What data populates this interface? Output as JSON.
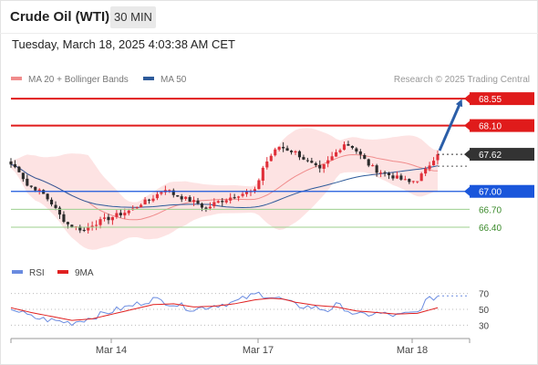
{
  "header": {
    "title": "Crude Oil (WTI)",
    "timeframe": "30 MIN",
    "datetime": "Tuesday, March 18, 2025 4:03:38 AM CET"
  },
  "legend": {
    "main": [
      {
        "label": "MA 20 + Bollinger Bands",
        "color": "#f08c8c"
      },
      {
        "label": "MA 50",
        "color": "#2e5a9a"
      }
    ],
    "indicator": [
      {
        "label": "RSI",
        "color": "#6a8be0"
      },
      {
        "label": "9MA",
        "color": "#e02020"
      }
    ],
    "credit": "Research © 2025 Trading Central"
  },
  "colors": {
    "up": "#e0303a",
    "down": "#2b2b2b",
    "resistance": "#e01b1b",
    "pivot": "#1a56db",
    "support": "#9ccf8e",
    "arrow": "#2b5ea8",
    "bollinger_fill": "#fde3e3"
  },
  "chart_data": [
    {
      "type": "candlestick",
      "x_labels": [
        "Mar 14",
        "Mar 17",
        "Mar 18"
      ],
      "price_range": [
        66.05,
        68.75
      ],
      "current_price": 67.62,
      "levels": [
        {
          "value": 68.55,
          "label": "68.55",
          "kind": "resistance"
        },
        {
          "value": 68.1,
          "label": "68.10",
          "kind": "resistance"
        },
        {
          "value": 67.62,
          "label": "67.62",
          "kind": "last"
        },
        {
          "value": 67.0,
          "label": "67.00",
          "kind": "pivot"
        },
        {
          "value": 66.7,
          "label": "66.70",
          "kind": "support"
        },
        {
          "value": 66.4,
          "label": "66.40",
          "kind": "support"
        }
      ],
      "target": {
        "from": 67.62,
        "to": 68.55
      },
      "close_path": [
        [
          0,
          67.45
        ],
        [
          2,
          67.35
        ],
        [
          4,
          67.1
        ],
        [
          6,
          67.05
        ],
        [
          8,
          66.95
        ],
        [
          10,
          66.8
        ],
        [
          12,
          66.6
        ],
        [
          14,
          66.45
        ],
        [
          16,
          66.4
        ],
        [
          18,
          66.35
        ],
        [
          20,
          66.45
        ],
        [
          22,
          66.5
        ],
        [
          24,
          66.55
        ],
        [
          26,
          66.6
        ],
        [
          28,
          66.65
        ],
        [
          30,
          66.7
        ],
        [
          32,
          66.8
        ],
        [
          34,
          66.85
        ],
        [
          36,
          66.95
        ],
        [
          38,
          67.05
        ],
        [
          40,
          66.95
        ],
        [
          42,
          66.9
        ],
        [
          44,
          66.85
        ],
        [
          46,
          66.8
        ],
        [
          48,
          66.7
        ],
        [
          50,
          66.8
        ],
        [
          52,
          66.85
        ],
        [
          54,
          66.9
        ],
        [
          56,
          66.95
        ],
        [
          58,
          66.98
        ],
        [
          60,
          67.0
        ],
        [
          62,
          67.4
        ],
        [
          64,
          67.6
        ],
        [
          66,
          67.75
        ],
        [
          68,
          67.7
        ],
        [
          70,
          67.65
        ],
        [
          72,
          67.55
        ],
        [
          74,
          67.45
        ],
        [
          76,
          67.35
        ],
        [
          78,
          67.5
        ],
        [
          80,
          67.65
        ],
        [
          82,
          67.8
        ],
        [
          84,
          67.75
        ],
        [
          86,
          67.6
        ],
        [
          88,
          67.45
        ],
        [
          90,
          67.35
        ],
        [
          92,
          67.3
        ],
        [
          94,
          67.25
        ],
        [
          96,
          67.2
        ],
        [
          98,
          67.15
        ],
        [
          100,
          67.2
        ],
        [
          102,
          67.35
        ],
        [
          104,
          67.55
        ],
        [
          105,
          67.62
        ]
      ]
    },
    {
      "type": "line",
      "name": "RSI",
      "y_ticks": [
        30,
        50,
        70
      ],
      "ylim": [
        20,
        80
      ],
      "rsi": [
        [
          0,
          52
        ],
        [
          5,
          40
        ],
        [
          10,
          36
        ],
        [
          15,
          33
        ],
        [
          20,
          40
        ],
        [
          25,
          48
        ],
        [
          30,
          55
        ],
        [
          35,
          63
        ],
        [
          40,
          57
        ],
        [
          45,
          50
        ],
        [
          50,
          55
        ],
        [
          55,
          59
        ],
        [
          58,
          65
        ],
        [
          61,
          70
        ],
        [
          64,
          66
        ],
        [
          67,
          62
        ],
        [
          70,
          55
        ],
        [
          75,
          52
        ],
        [
          78,
          49
        ],
        [
          80,
          55
        ],
        [
          82,
          52
        ],
        [
          85,
          42
        ],
        [
          90,
          45
        ],
        [
          95,
          42
        ],
        [
          100,
          46
        ],
        [
          102,
          60
        ],
        [
          105,
          67
        ]
      ],
      "ma9": [
        [
          0,
          52
        ],
        [
          5,
          46
        ],
        [
          10,
          41
        ],
        [
          15,
          36
        ],
        [
          20,
          38
        ],
        [
          25,
          44
        ],
        [
          30,
          50
        ],
        [
          35,
          56
        ],
        [
          40,
          57
        ],
        [
          45,
          53
        ],
        [
          50,
          54
        ],
        [
          55,
          57
        ],
        [
          60,
          62
        ],
        [
          64,
          64
        ],
        [
          67,
          63
        ],
        [
          70,
          59
        ],
        [
          75,
          55
        ],
        [
          80,
          53
        ],
        [
          85,
          48
        ],
        [
          90,
          46
        ],
        [
          95,
          44
        ],
        [
          100,
          45
        ],
        [
          105,
          52
        ]
      ]
    }
  ]
}
